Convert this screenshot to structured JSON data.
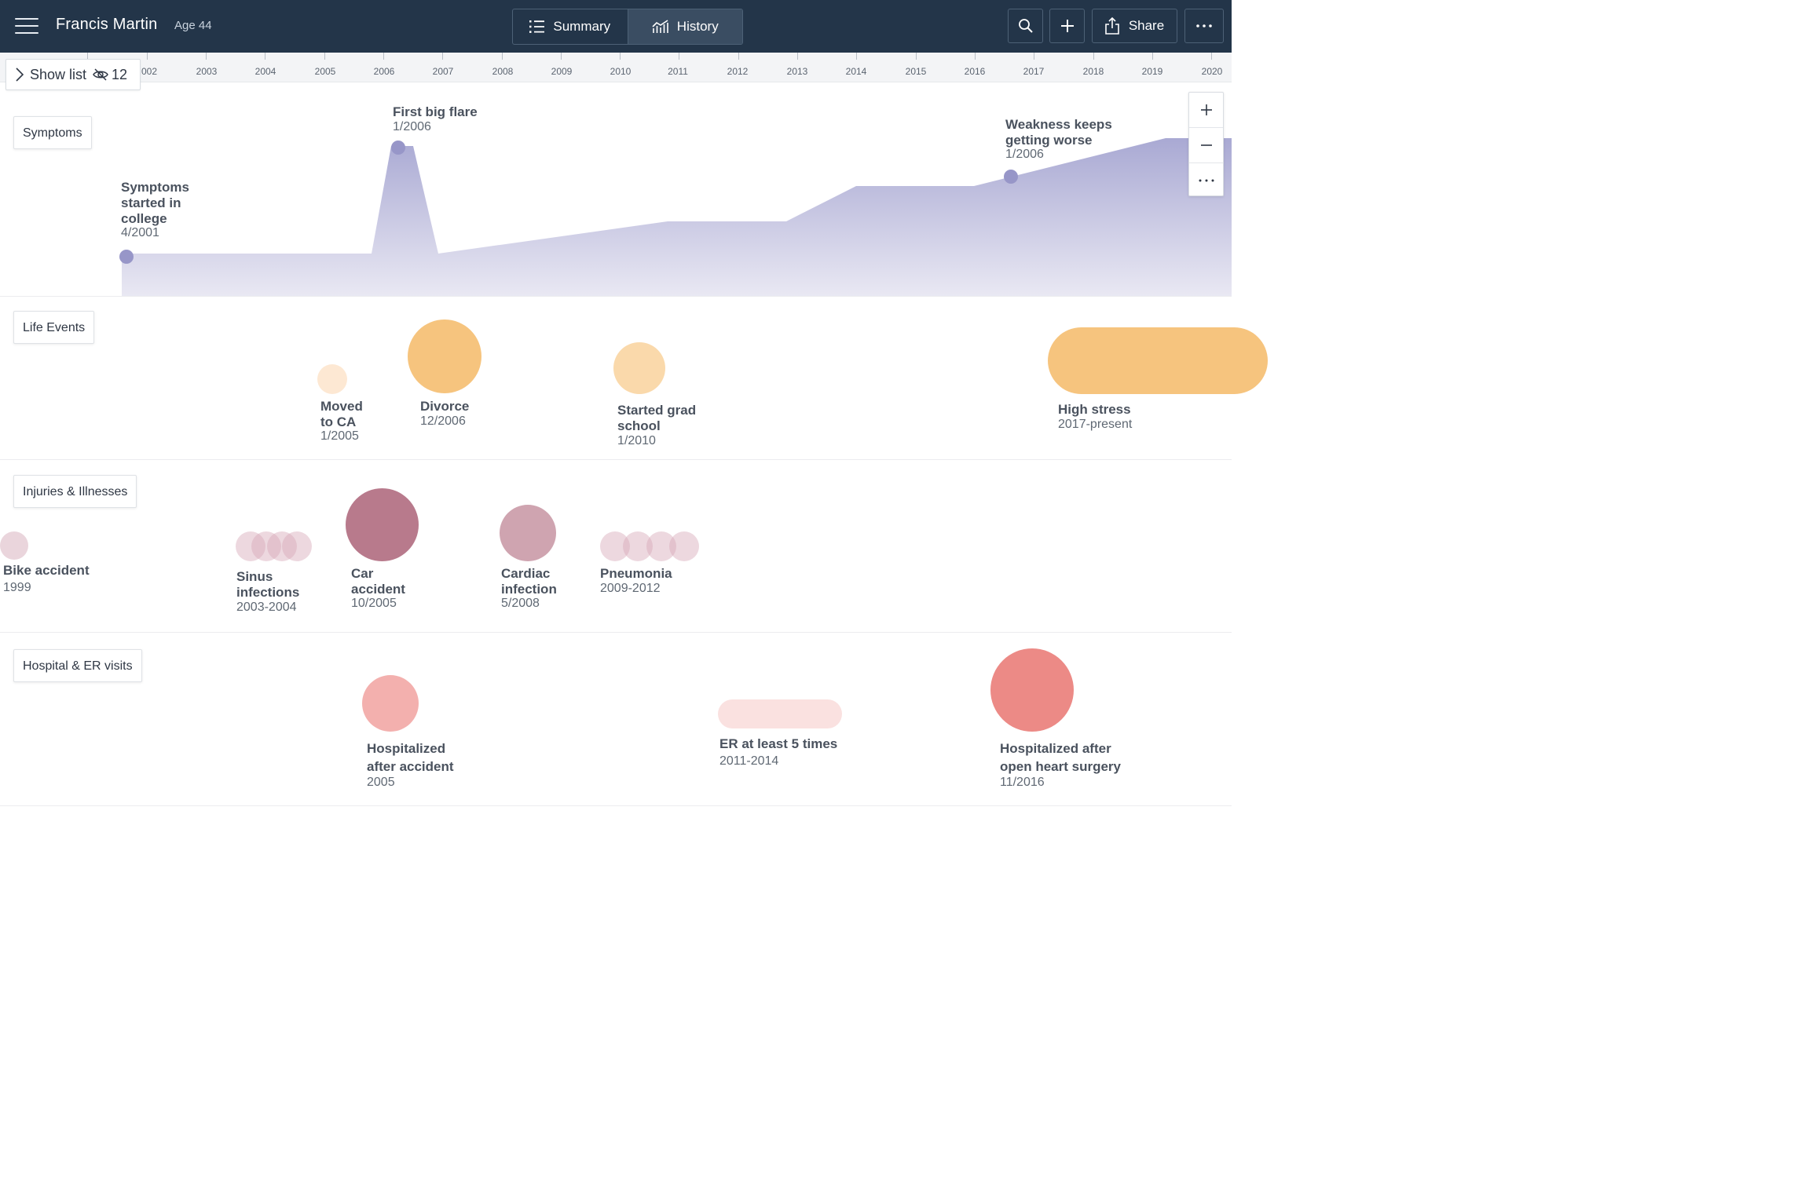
{
  "header": {
    "patient_name": "Francis Martin",
    "age": "Age 44",
    "tabs": [
      {
        "label": "Summary",
        "icon": "list-icon"
      },
      {
        "label": "History",
        "icon": "chart-icon",
        "active": true
      }
    ],
    "share_label": "Share"
  },
  "show_list": {
    "label": "Show list",
    "hidden_count": "12"
  },
  "timeline_years": [
    "002",
    "2003",
    "2004",
    "2005",
    "2006",
    "2007",
    "2008",
    "2009",
    "2010",
    "2011",
    "2012",
    "2013",
    "2014",
    "2015",
    "2016",
    "2017",
    "2018",
    "2019",
    "2020"
  ],
  "sections": {
    "symptoms": "Symptoms",
    "life_events": "Life Events",
    "injuries": "Injuries & Illnesses",
    "hospital": "Hospital & ER visits"
  },
  "symptoms": [
    {
      "title": [
        "Symptoms",
        "started in",
        "college"
      ],
      "date": "4/2001"
    },
    {
      "title": [
        "First big flare"
      ],
      "date": "1/2006"
    },
    {
      "title": [
        "Weakness keeps",
        "getting worse"
      ],
      "date": "1/2006"
    }
  ],
  "life_events": [
    {
      "title": [
        "Moved",
        "to CA"
      ],
      "date": "1/2005"
    },
    {
      "title": [
        "Divorce"
      ],
      "date": "12/2006"
    },
    {
      "title": [
        "Started grad",
        "school"
      ],
      "date": "1/2010"
    },
    {
      "title": [
        "High stress"
      ],
      "date": "2017-present"
    }
  ],
  "injuries": [
    {
      "title": [
        "Bike accident"
      ],
      "date": "1999"
    },
    {
      "title": [
        "Sinus",
        "infections"
      ],
      "date": "2003-2004"
    },
    {
      "title": [
        "Car",
        "accident"
      ],
      "date": "10/2005"
    },
    {
      "title": [
        "Cardiac",
        "infection"
      ],
      "date": "5/2008"
    },
    {
      "title": [
        "Pneumonia"
      ],
      "date": "2009-2012"
    }
  ],
  "hospital": [
    {
      "title": [
        "Hospitalized",
        "after accident"
      ],
      "date": "2005"
    },
    {
      "title": [
        "ER at least 5 times"
      ],
      "date": "2011-2014"
    },
    {
      "title": [
        "Hospitalized after",
        "open heart surgery"
      ],
      "date": "11/2016"
    }
  ],
  "colors": {
    "header_bg": "#233549",
    "symptom_area": "#a9a9d3",
    "life_event": "#f6c47e",
    "injury": "#b87a8c",
    "hospital": "#ec8a86"
  }
}
